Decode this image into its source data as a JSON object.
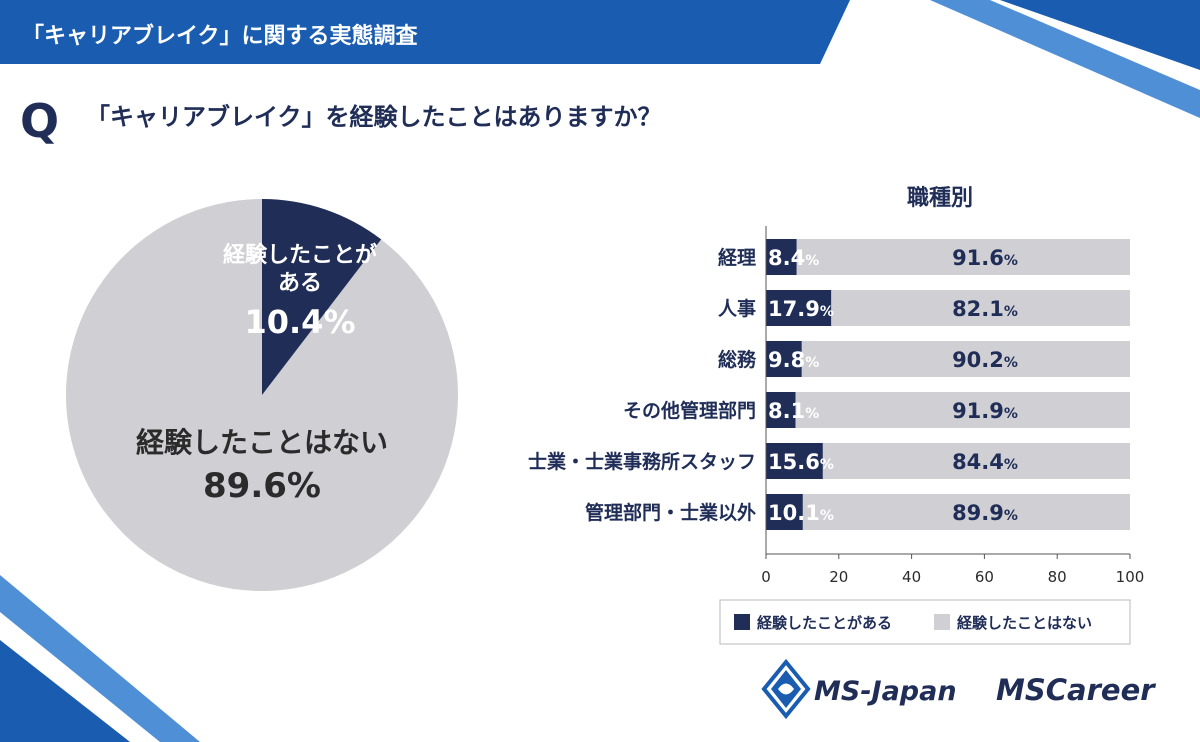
{
  "header": {
    "title": "「キャリアブレイク」に関する実態調査"
  },
  "question": {
    "marker": "Q",
    "text": "「キャリアブレイク」を経験したことはありますか？"
  },
  "colors": {
    "navy": "#1f2d57",
    "gray": "#cfcfd4",
    "blue": "#1a5db0",
    "light_blue": "#4f8fd6"
  },
  "chart_data": [
    {
      "type": "pie",
      "slices": [
        {
          "label_line1": "経験したことが",
          "label_line2": "ある",
          "value": 10.4,
          "value_text": "10.4%",
          "color": "#1f2d57"
        },
        {
          "label_line1": "経験したことはない",
          "value": 89.6,
          "value_text": "89.6%",
          "color": "#cfcfd4"
        }
      ]
    },
    {
      "type": "bar",
      "orientation": "horizontal",
      "stacked": true,
      "title": "職種別",
      "categories": [
        "経理",
        "人事",
        "総務",
        "その他管理部門",
        "士業・士業事務所スタッフ",
        "管理部門・士業以外"
      ],
      "series": [
        {
          "name": "経験したことがある",
          "values": [
            8.4,
            17.9,
            9.8,
            8.1,
            15.6,
            10.1
          ],
          "color": "#1f2d57"
        },
        {
          "name": "経験したことはない",
          "values": [
            91.6,
            82.1,
            90.2,
            91.9,
            84.4,
            89.9
          ],
          "color": "#cfcfd4"
        }
      ],
      "xlim": [
        0,
        100
      ],
      "xticks": [
        0,
        20,
        40,
        60,
        80,
        100
      ],
      "legend": [
        "経験したことがある",
        "経験したことはない"
      ]
    }
  ],
  "logos": {
    "ms_japan": "MS-Japan",
    "ms_career": "MSCareer"
  }
}
